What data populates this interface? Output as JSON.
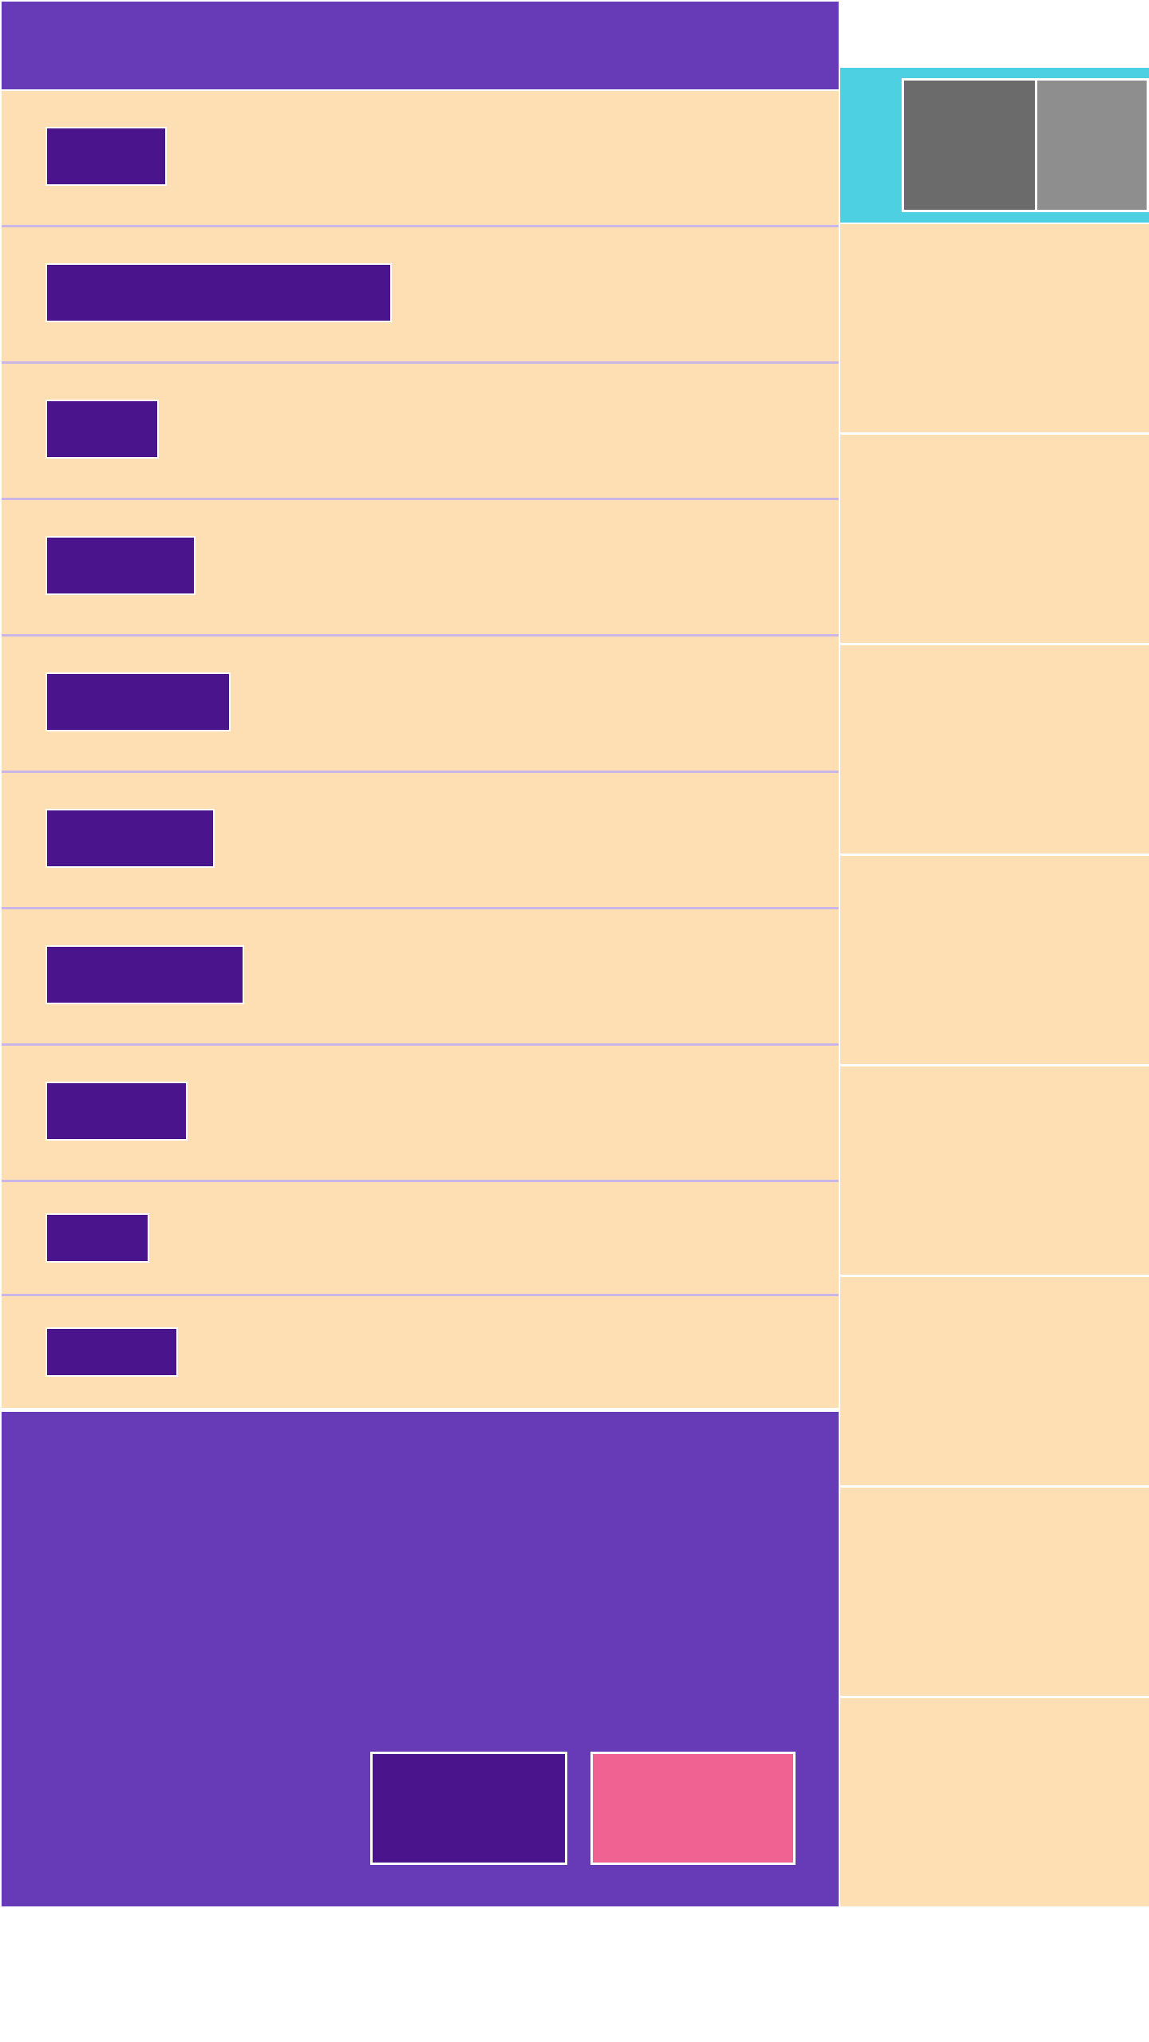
{
  "colors": {
    "header": "#673ab7",
    "list_background": "#fddfb3",
    "chip": "#4a148c",
    "primary_button": "#4a148c",
    "secondary_button": "#f06292",
    "right_header": "#4dd0e1",
    "swatch_dark": "#6b6b6b",
    "swatch_light": "#8e8e8e"
  },
  "header": {
    "title": ""
  },
  "list": {
    "items": [
      {
        "label": ""
      },
      {
        "label": ""
      },
      {
        "label": ""
      },
      {
        "label": ""
      },
      {
        "label": ""
      },
      {
        "label": ""
      },
      {
        "label": ""
      },
      {
        "label": ""
      },
      {
        "label": ""
      },
      {
        "label": ""
      }
    ]
  },
  "footer": {
    "primary_label": "",
    "secondary_label": ""
  },
  "right_panel": {
    "cards": [
      {
        "label": ""
      },
      {
        "label": ""
      },
      {
        "label": ""
      },
      {
        "label": ""
      },
      {
        "label": ""
      },
      {
        "label": ""
      },
      {
        "label": ""
      },
      {
        "label": ""
      }
    ]
  }
}
